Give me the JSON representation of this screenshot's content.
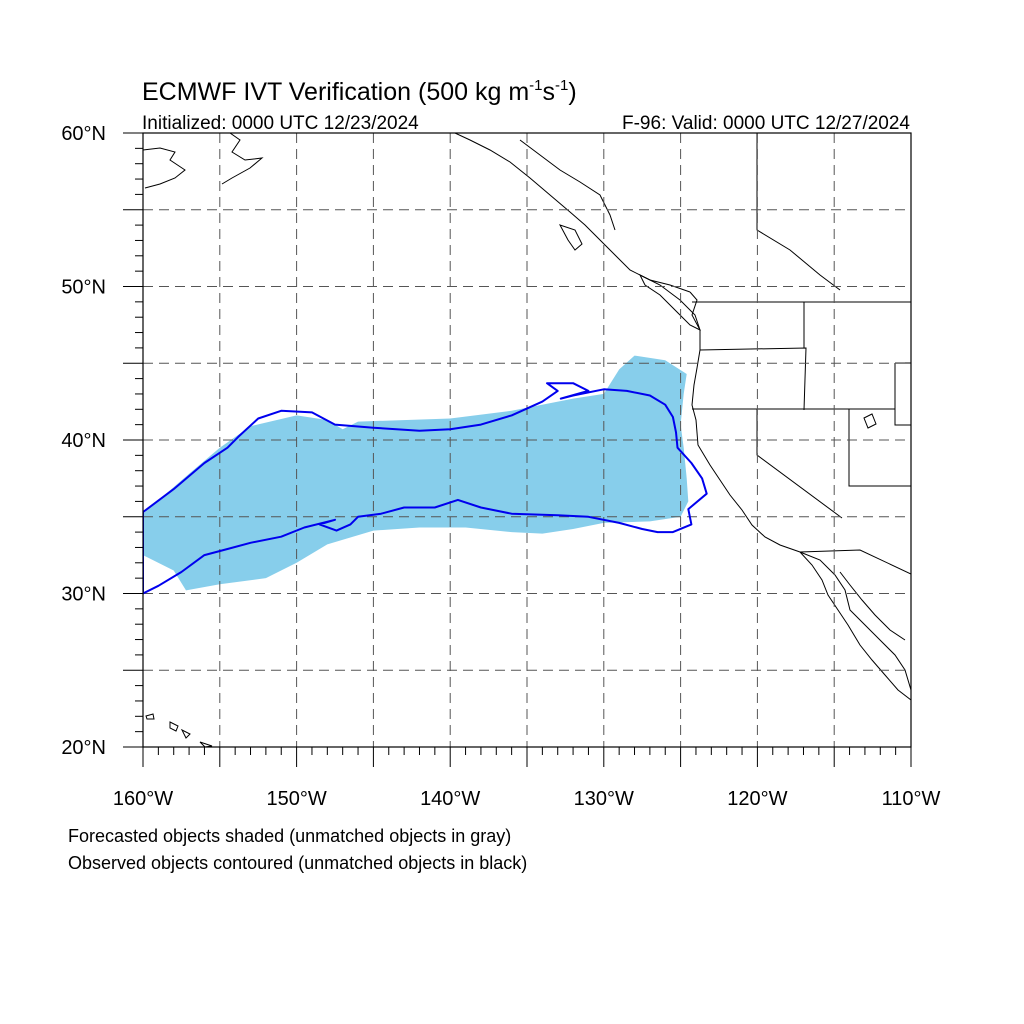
{
  "title": {
    "main": "ECMWF IVT Verification (500 kg m",
    "exp1": "-1",
    "mid": "s",
    "exp2": "-1",
    "close": ")"
  },
  "subtitle_left": "Initialized: 0000 UTC 12/23/2024",
  "subtitle_right": "F-96: Valid: 0000 UTC 12/27/2024",
  "lat_labels": [
    {
      "lat": 60,
      "text": "60°N"
    },
    {
      "lat": 50,
      "text": "50°N"
    },
    {
      "lat": 40,
      "text": "40°N"
    },
    {
      "lat": 30,
      "text": "30°N"
    },
    {
      "lat": 20,
      "text": "20°N"
    }
  ],
  "lon_labels": [
    {
      "lon": -160,
      "text": "160°W"
    },
    {
      "lon": -150,
      "text": "150°W"
    },
    {
      "lon": -140,
      "text": "140°W"
    },
    {
      "lon": -130,
      "text": "130°W"
    },
    {
      "lon": -120,
      "text": "120°W"
    },
    {
      "lon": -110,
      "text": "110°W"
    }
  ],
  "map_extent": {
    "lon": [
      -160,
      -110
    ],
    "lat": [
      20,
      60
    ]
  },
  "grid": {
    "lat_step": 5,
    "lon_step": 5,
    "style": "dashed"
  },
  "colors": {
    "forecast_fill": "#87ceeb",
    "observed_contour": "#0000ee",
    "coastline": "#000000",
    "grid": "#555555"
  },
  "forecast_object": {
    "label": "matched forecast object (shaded)",
    "polygon_lonlat": [
      [
        -160,
        35.2
      ],
      [
        -157,
        37.8
      ],
      [
        -155,
        39.5
      ],
      [
        -153,
        40.9
      ],
      [
        -150,
        41.6
      ],
      [
        -148,
        41.3
      ],
      [
        -147,
        40.7
      ],
      [
        -146,
        41.2
      ],
      [
        -140,
        41.4
      ],
      [
        -136,
        41.9
      ],
      [
        -132,
        42.7
      ],
      [
        -130,
        43.0
      ],
      [
        -129,
        44.6
      ],
      [
        -128,
        45.5
      ],
      [
        -126,
        45.2
      ],
      [
        -124.6,
        44.3
      ],
      [
        -124.8,
        43.0
      ],
      [
        -125,
        41.0
      ],
      [
        -124.8,
        39.5
      ],
      [
        -124.6,
        37.5
      ],
      [
        -124.5,
        36.0
      ],
      [
        -125,
        35.0
      ],
      [
        -127,
        34.7
      ],
      [
        -130,
        34.6
      ],
      [
        -132,
        34.2
      ],
      [
        -134,
        33.9
      ],
      [
        -136,
        34.0
      ],
      [
        -139,
        34.3
      ],
      [
        -142,
        34.3
      ],
      [
        -145,
        34.1
      ],
      [
        -148,
        33.2
      ],
      [
        -150,
        32.0
      ],
      [
        -152,
        31.0
      ],
      [
        -155,
        30.6
      ],
      [
        -157.2,
        30.2
      ],
      [
        -158,
        31.5
      ],
      [
        -160,
        32.5
      ]
    ]
  },
  "observed_object": {
    "label": "matched observed object (contour)",
    "polygon_lonlat": [
      [
        -160,
        35.3
      ],
      [
        -158,
        36.8
      ],
      [
        -156,
        38.5
      ],
      [
        -154.5,
        39.5
      ],
      [
        -153.8,
        40.2
      ],
      [
        -152.5,
        41.4
      ],
      [
        -151,
        41.9
      ],
      [
        -149,
        41.8
      ],
      [
        -147.5,
        41.0
      ],
      [
        -145,
        40.8
      ],
      [
        -142,
        40.6
      ],
      [
        -140,
        40.7
      ],
      [
        -138,
        41.0
      ],
      [
        -136,
        41.6
      ],
      [
        -134,
        42.5
      ],
      [
        -133,
        43.2
      ],
      [
        -133.7,
        43.7
      ],
      [
        -132,
        43.7
      ],
      [
        -131,
        43.2
      ],
      [
        -132.8,
        42.7
      ],
      [
        -132,
        42.9
      ],
      [
        -130,
        43.3
      ],
      [
        -128.5,
        43.2
      ],
      [
        -127,
        42.9
      ],
      [
        -126,
        42.3
      ],
      [
        -125.5,
        41.5
      ],
      [
        -125.3,
        40.5
      ],
      [
        -125.2,
        39.5
      ],
      [
        -124.3,
        38.5
      ],
      [
        -123.6,
        37.5
      ],
      [
        -123.3,
        36.5
      ],
      [
        -124.5,
        35.5
      ],
      [
        -124.3,
        34.5
      ],
      [
        -125.5,
        34.0
      ],
      [
        -126.5,
        34.0
      ],
      [
        -127.5,
        34.2
      ],
      [
        -129,
        34.6
      ],
      [
        -131,
        35.0
      ],
      [
        -133,
        35.1
      ],
      [
        -136,
        35.2
      ],
      [
        -138,
        35.6
      ],
      [
        -139.5,
        36.1
      ],
      [
        -141,
        35.6
      ],
      [
        -143,
        35.6
      ],
      [
        -144.5,
        35.2
      ],
      [
        -146,
        35.0
      ],
      [
        -146.5,
        34.5
      ],
      [
        -147.4,
        34.1
      ],
      [
        -148.5,
        34.5
      ],
      [
        -147.5,
        34.8
      ],
      [
        -149.5,
        34.3
      ],
      [
        -151,
        33.7
      ],
      [
        -153,
        33.3
      ],
      [
        -154.5,
        32.9
      ],
      [
        -156,
        32.5
      ],
      [
        -157.5,
        31.4
      ],
      [
        -159,
        30.5
      ],
      [
        -160,
        30.0
      ]
    ]
  },
  "captions": [
    "Forecasted objects shaded (unmatched objects in gray)",
    "Observed objects contoured (unmatched objects in black)"
  ]
}
